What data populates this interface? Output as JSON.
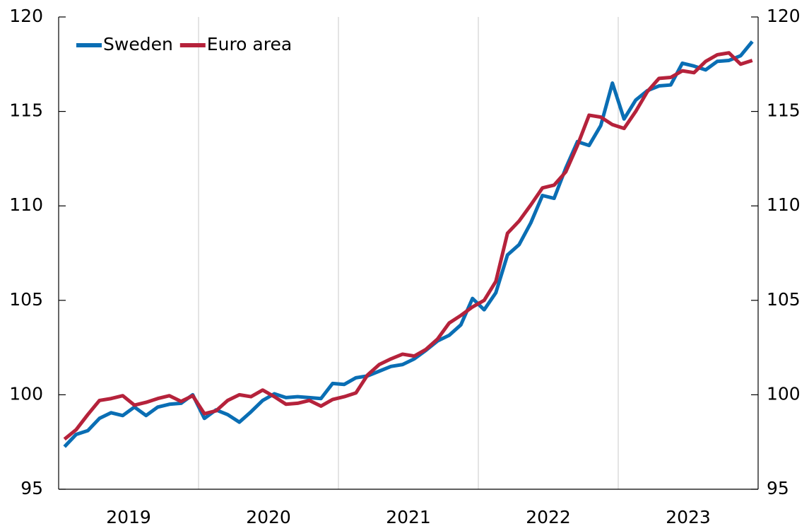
{
  "chart_data": {
    "type": "line",
    "categories": [
      "2019",
      null,
      null,
      null,
      null,
      null,
      null,
      null,
      null,
      null,
      null,
      null,
      "2020",
      null,
      null,
      null,
      null,
      null,
      null,
      null,
      null,
      null,
      null,
      null,
      "2021",
      null,
      null,
      null,
      null,
      null,
      null,
      null,
      null,
      null,
      null,
      null,
      "2022",
      null,
      null,
      null,
      null,
      null,
      null,
      null,
      null,
      null,
      null,
      null,
      "2023",
      null,
      null,
      null,
      null,
      null,
      null,
      null,
      null,
      null,
      null,
      null
    ],
    "series": [
      {
        "name": "Sweden",
        "color": "#0a6eb4",
        "values": [
          97.25,
          97.9,
          98.1,
          98.75,
          99.05,
          98.9,
          99.35,
          98.9,
          99.35,
          99.5,
          99.55,
          100.0,
          98.75,
          99.2,
          98.95,
          98.55,
          99.1,
          99.7,
          100.05,
          99.85,
          99.9,
          99.85,
          99.8,
          100.6,
          100.55,
          100.9,
          101.0,
          101.25,
          101.5,
          101.6,
          101.9,
          102.35,
          102.85,
          103.15,
          103.7,
          105.1,
          104.5,
          105.4,
          107.4,
          107.95,
          109.1,
          110.55,
          110.4,
          112.0,
          113.4,
          113.2,
          114.25,
          116.5,
          114.6,
          115.6,
          116.1,
          116.35,
          116.4,
          117.55,
          117.4,
          117.2,
          117.65,
          117.7,
          117.95,
          118.7
        ]
      },
      {
        "name": "Euro area",
        "color": "#b5223b",
        "values": [
          97.65,
          98.15,
          98.95,
          99.7,
          99.8,
          99.95,
          99.45,
          99.6,
          99.8,
          99.95,
          99.65,
          99.95,
          99.0,
          99.15,
          99.7,
          100.0,
          99.9,
          100.25,
          99.9,
          99.5,
          99.55,
          99.7,
          99.4,
          99.75,
          99.9,
          100.1,
          101.05,
          101.6,
          101.9,
          102.15,
          102.05,
          102.4,
          102.95,
          103.8,
          104.2,
          104.65,
          105.0,
          106.0,
          108.55,
          109.2,
          110.05,
          110.95,
          111.1,
          111.8,
          113.2,
          114.8,
          114.7,
          114.3,
          114.1,
          115.0,
          116.05,
          116.75,
          116.8,
          117.15,
          117.05,
          117.65,
          118.0,
          118.1,
          117.5,
          117.7
        ]
      }
    ],
    "ylim": [
      95,
      120
    ],
    "yticks": [
      95,
      100,
      105,
      110,
      115,
      120
    ],
    "y2lim": [
      95,
      120
    ],
    "y2ticks": [
      95,
      100,
      105,
      110,
      115,
      120
    ],
    "grid": true,
    "legend": "top-left"
  }
}
